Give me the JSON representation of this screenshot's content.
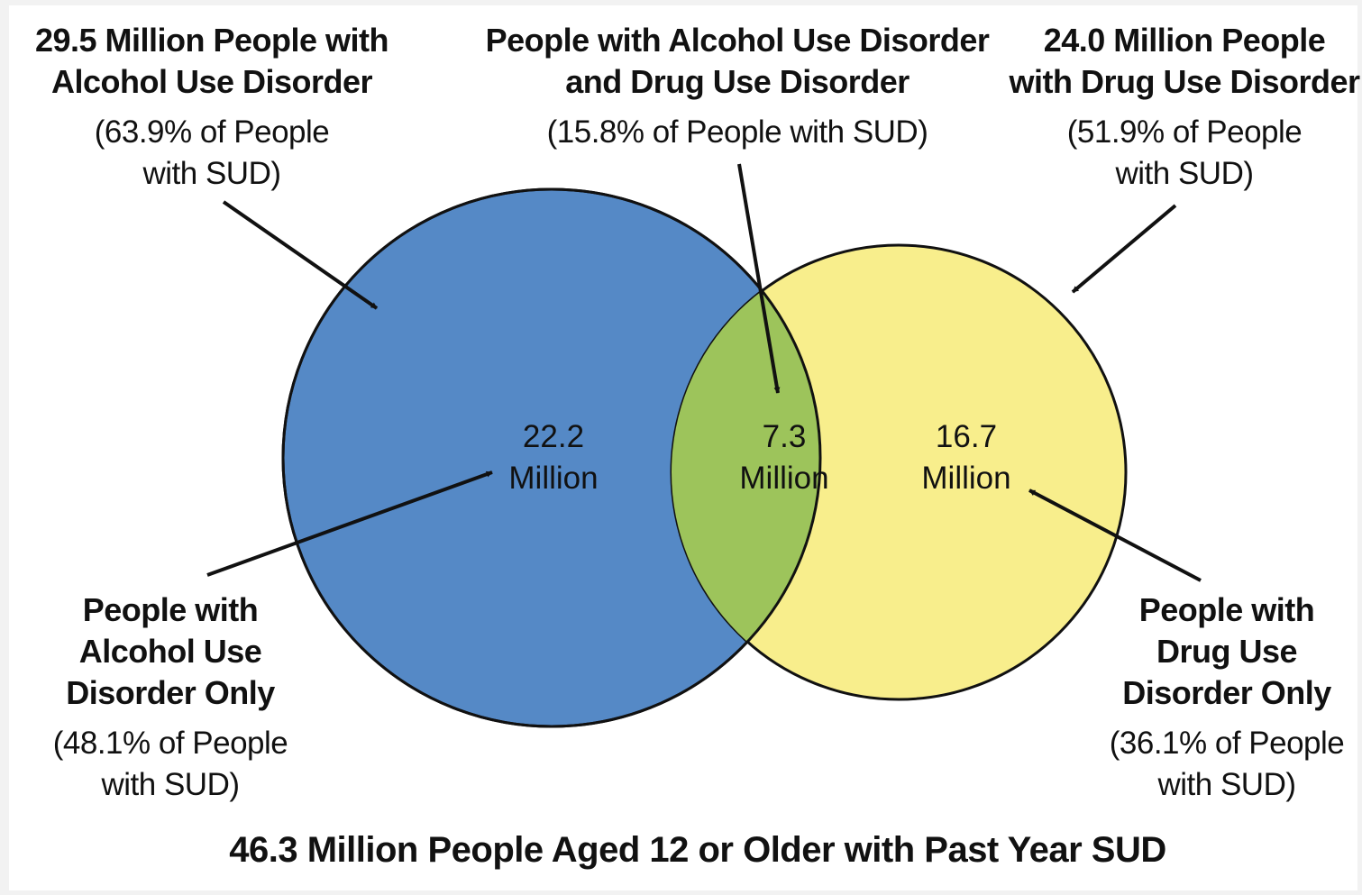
{
  "colors": {
    "alcohol_circle": "#5589c6",
    "drug_circle": "#f8ee8c",
    "overlap": "#9dc45b",
    "stroke": "#111111"
  },
  "labels": {
    "alcohol_total": {
      "title_lines": [
        "29.5 Million People with",
        "Alcohol Use Disorder"
      ],
      "pct_lines": [
        "(63.9% of People",
        "with SUD)"
      ]
    },
    "both": {
      "title_lines": [
        "People with Alcohol Use Disorder",
        "and Drug Use Disorder"
      ],
      "pct_lines": [
        "(15.8% of People with SUD)"
      ]
    },
    "drug_total": {
      "title_lines": [
        "24.0 Million People",
        "with Drug Use Disorder"
      ],
      "pct_lines": [
        "(51.9% of People",
        "with SUD)"
      ]
    },
    "alcohol_only": {
      "title_lines": [
        "People with",
        "Alcohol Use",
        "Disorder Only"
      ],
      "pct_lines": [
        "(48.1% of People",
        "with SUD)"
      ]
    },
    "drug_only": {
      "title_lines": [
        "People with",
        "Drug Use",
        "Disorder Only"
      ],
      "pct_lines": [
        "(36.1% of People",
        "with SUD)"
      ]
    }
  },
  "regions": {
    "alcohol_only": {
      "value": "22.2",
      "unit": "Million"
    },
    "both": {
      "value": "7.3",
      "unit": "Million"
    },
    "drug_only": {
      "value": "16.7",
      "unit": "Million"
    }
  },
  "footer": "46.3 Million People Aged 12 or Older with Past Year SUD"
}
